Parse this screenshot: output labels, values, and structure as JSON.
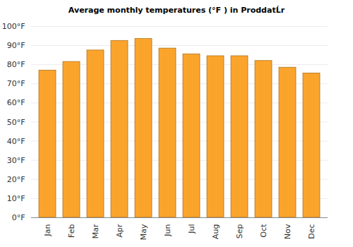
{
  "chart_data": {
    "type": "bar",
    "title": "Average monthly temperatures (°F ) in ProddatĹr",
    "categories": [
      "Jan",
      "Feb",
      "Mar",
      "Apr",
      "May",
      "Jun",
      "Jul",
      "Aug",
      "Sep",
      "Oct",
      "Nov",
      "Dec"
    ],
    "values": [
      77,
      81.5,
      87.5,
      92.5,
      93.5,
      88.5,
      85.5,
      84.5,
      84.5,
      82,
      78.5,
      75.5
    ],
    "color": "#fba42c",
    "ylim": [
      0,
      100
    ],
    "yticks": [
      {
        "value": 0,
        "label": "0°F"
      },
      {
        "value": 10,
        "label": "10°F"
      },
      {
        "value": 20,
        "label": "20°F"
      },
      {
        "value": 30,
        "label": "30°F"
      },
      {
        "value": 40,
        "label": "40°F"
      },
      {
        "value": 50,
        "label": "50°F"
      },
      {
        "value": 60,
        "label": "60°F"
      },
      {
        "value": 70,
        "label": "70°F"
      },
      {
        "value": 80,
        "label": "80°F"
      },
      {
        "value": 90,
        "label": "90°F"
      },
      {
        "value": 100,
        "label": "100°F"
      }
    ],
    "grid": true
  }
}
